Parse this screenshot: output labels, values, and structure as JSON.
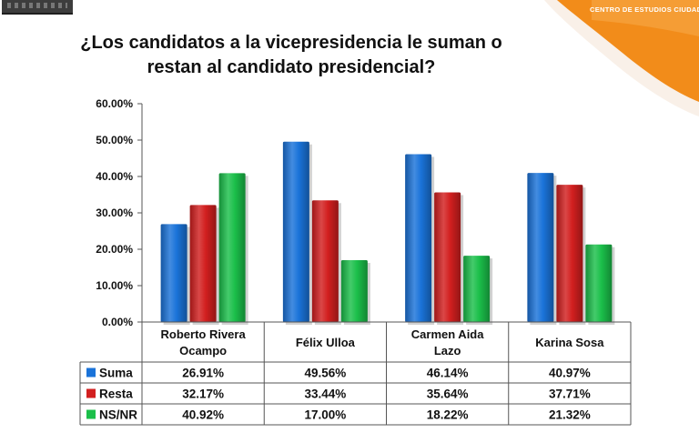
{
  "header": {
    "brand_text": "CENTRO DE ESTUDIOS CIUDADA"
  },
  "colors": {
    "brand_orange": "#f28c1a",
    "suma": "#1a73d9",
    "resta": "#d21f1f",
    "nsnr": "#1bbf4a"
  },
  "chart_data": {
    "type": "bar",
    "title": "¿Los candidatos a la vicepresidencia le suman o restan al candidato presidencial?",
    "title_lines": [
      "¿Los candidatos a la vicepresidencia le suman o",
      "restan al candidato presidencial?"
    ],
    "xlabel": "",
    "ylabel": "",
    "ylim": [
      0,
      60
    ],
    "y_ticks": [
      "0.00%",
      "10.00%",
      "20.00%",
      "30.00%",
      "40.00%",
      "50.00%",
      "60.00%"
    ],
    "y_tick_values": [
      0,
      10,
      20,
      30,
      40,
      50,
      60
    ],
    "grid": false,
    "legend": "data-table",
    "categories": [
      [
        "Roberto Rivera",
        "Ocampo"
      ],
      [
        "Félix Ulloa"
      ],
      [
        "Carmen Aida",
        "Lazo"
      ],
      [
        "Karina Sosa"
      ]
    ],
    "series": [
      {
        "name": "Suma",
        "color": "#1a73d9",
        "values": [
          26.91,
          49.56,
          46.14,
          40.97
        ],
        "labels": [
          "26.91%",
          "49.56%",
          "46.14%",
          "40.97%"
        ]
      },
      {
        "name": "Resta",
        "color": "#d21f1f",
        "values": [
          32.17,
          33.44,
          35.64,
          37.71
        ],
        "labels": [
          "32.17%",
          "33.44%",
          "35.64%",
          "37.71%"
        ]
      },
      {
        "name": "NS/NR",
        "color": "#1bbf4a",
        "values": [
          40.92,
          17.0,
          18.22,
          21.32
        ],
        "labels": [
          "40.92%",
          "17.00%",
          "18.22%",
          "21.32%"
        ]
      }
    ]
  }
}
